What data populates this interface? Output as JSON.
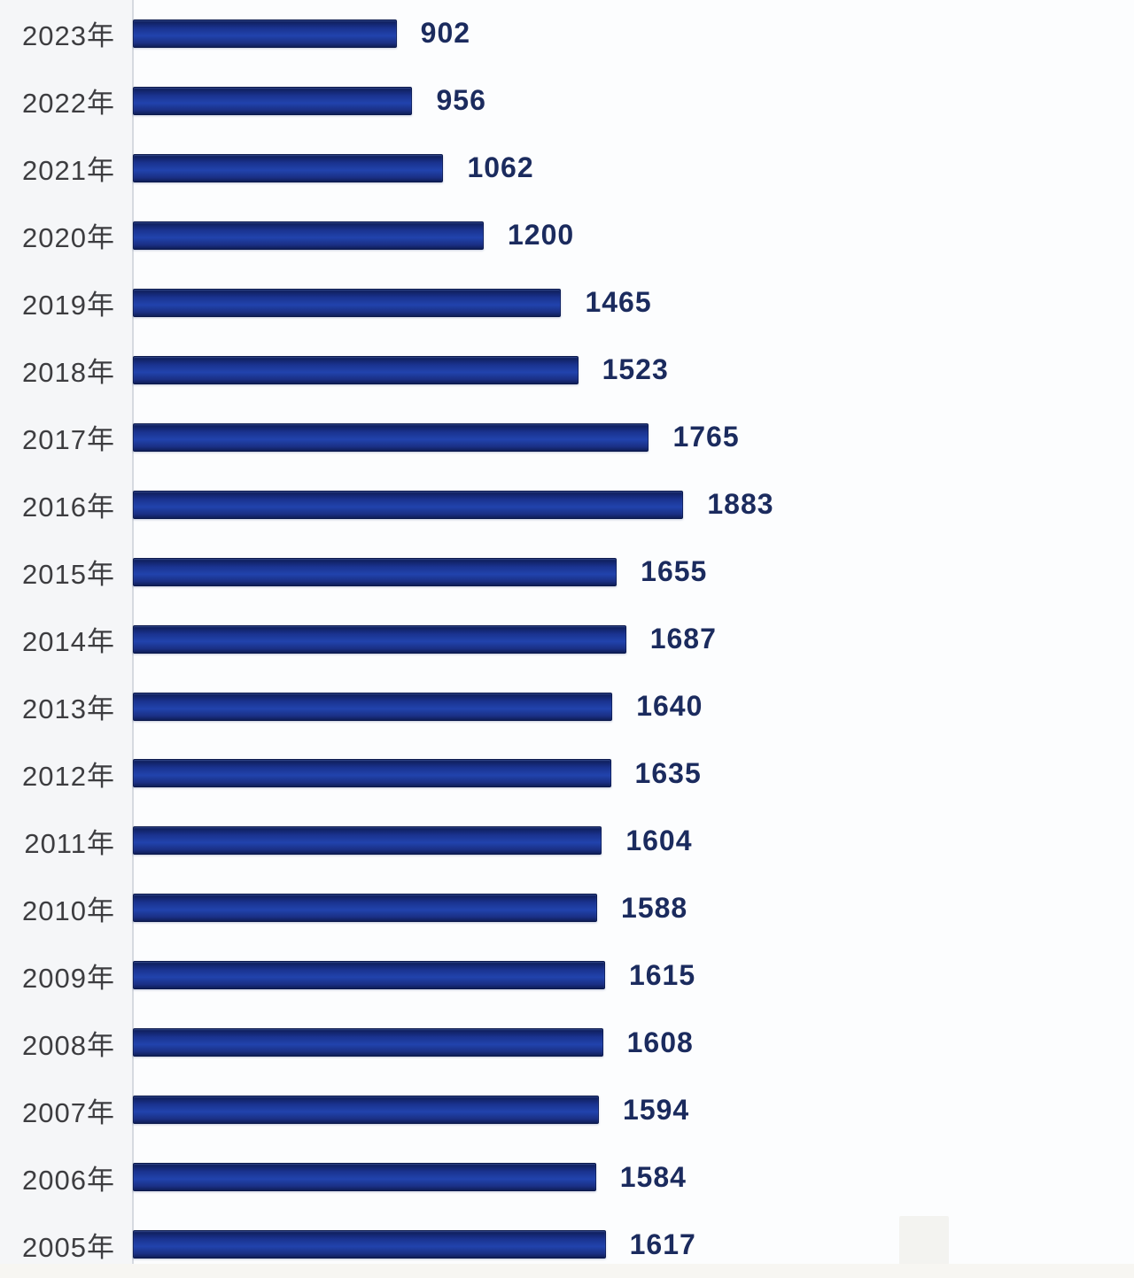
{
  "chart_data": {
    "type": "bar",
    "orientation": "horizontal",
    "title": "",
    "xlabel": "",
    "ylabel": "",
    "grid": false,
    "legend": false,
    "xlim": [
      0,
      1900
    ],
    "categories": [
      "2023年",
      "2022年",
      "2021年",
      "2020年",
      "2019年",
      "2018年",
      "2017年",
      "2016年",
      "2015年",
      "2014年",
      "2013年",
      "2012年",
      "2011年",
      "2010年",
      "2009年",
      "2008年",
      "2007年",
      "2006年",
      "2005年"
    ],
    "values": [
      902,
      956,
      1062,
      1200,
      1465,
      1523,
      1765,
      1883,
      1655,
      1687,
      1640,
      1635,
      1604,
      1588,
      1615,
      1608,
      1594,
      1584,
      1617
    ],
    "bar_gradient": [
      "#0d1c55",
      "#1a3390",
      "#2143ad",
      "#1a2f84",
      "#0f1e58"
    ],
    "value_label_color": "#1b2b5e",
    "category_label_color": "#3d3d40",
    "axis_line_color": "#d6dae0"
  }
}
